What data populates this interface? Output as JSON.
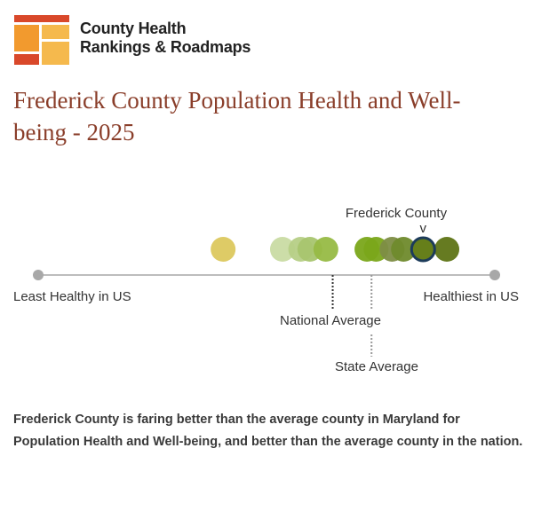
{
  "brand": {
    "name_line1": "County Health",
    "name_line2": "Rankings & Roadmaps",
    "logo_colors": [
      "#e8a33a",
      "#d9482a",
      "#f5b94d"
    ]
  },
  "page_title": "Frederick County Population Health and Well-being - 2025",
  "chart_data": {
    "type": "scatter",
    "description": "Distribution of county scores from least healthy to healthiest in US",
    "xlim": [
      0,
      100
    ],
    "scale_labels": {
      "low": "Least Healthy in US",
      "high": "Healthiest in US"
    },
    "points": [
      {
        "x": 40.5,
        "color": "#dcc85e"
      },
      {
        "x": 53.5,
        "color": "#c9dba3"
      },
      {
        "x": 57.5,
        "color": "#b6cf86"
      },
      {
        "x": 59.5,
        "color": "#a8c56f"
      },
      {
        "x": 63.0,
        "color": "#97bb45"
      },
      {
        "x": 72.0,
        "color": "#7aa61a"
      },
      {
        "x": 74.0,
        "color": "#7aa61a"
      },
      {
        "x": 77.5,
        "color": "#7d8d44"
      },
      {
        "x": 80.0,
        "color": "#6f8a2c"
      },
      {
        "x": 89.5,
        "color": "#5e7415"
      }
    ],
    "highlight": {
      "label": "Frederick County",
      "marker": "v",
      "x": 84.3,
      "color": "#667f1a",
      "stroke": "#1c3b5a"
    },
    "references": [
      {
        "label": "National Average",
        "x": 64.5,
        "style": "dotted-dark"
      },
      {
        "label": "State Average",
        "x": 73.0,
        "style": "dotted-light"
      }
    ],
    "grid": false,
    "legend": "none"
  },
  "summary": "Frederick County is faring better than the average county in Maryland for Population Health and Well-being, and better than the average county in the nation."
}
